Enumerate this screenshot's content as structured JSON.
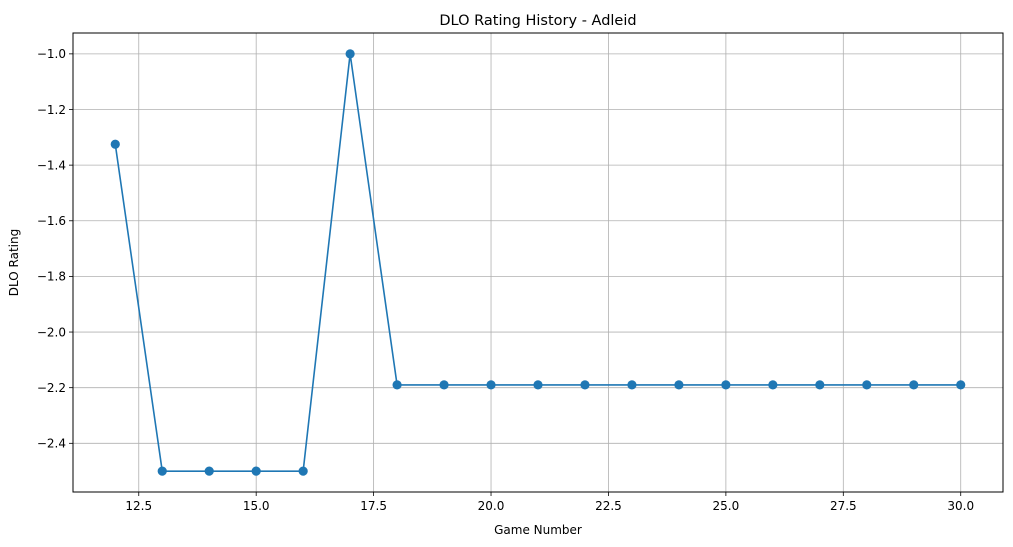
{
  "chart_data": {
    "type": "line",
    "title": "DLO Rating History - Adleid",
    "xlabel": "Game Number",
    "ylabel": "DLO Rating",
    "x": [
      12,
      13,
      14,
      15,
      16,
      17,
      18,
      19,
      20,
      21,
      22,
      23,
      24,
      25,
      26,
      27,
      28,
      29,
      30
    ],
    "series": [
      {
        "values": [
          -1.325,
          -2.5,
          -2.5,
          -2.5,
          -2.5,
          -1.0,
          -2.19,
          -2.19,
          -2.19,
          -2.19,
          -2.19,
          -2.19,
          -2.19,
          -2.19,
          -2.19,
          -2.19,
          -2.19,
          -2.19,
          -2.19
        ],
        "color": "#1f77b4",
        "marker": "circle"
      }
    ],
    "xlim": [
      11.1,
      30.9
    ],
    "ylim": [
      -2.575,
      -0.925
    ],
    "xticks": [
      12.5,
      15.0,
      17.5,
      20.0,
      22.5,
      25.0,
      27.5,
      30.0
    ],
    "xtick_labels": [
      "12.5",
      "15.0",
      "17.5",
      "20.0",
      "22.5",
      "25.0",
      "27.5",
      "30.0"
    ],
    "yticks": [
      -1.0,
      -1.2,
      -1.4,
      -1.6,
      -1.8,
      -2.0,
      -2.2,
      -2.4
    ],
    "ytick_labels": [
      "−1.0",
      "−1.2",
      "−1.4",
      "−1.6",
      "−1.8",
      "−2.0",
      "−2.2",
      "−2.4"
    ],
    "grid": true,
    "legend": "none"
  }
}
